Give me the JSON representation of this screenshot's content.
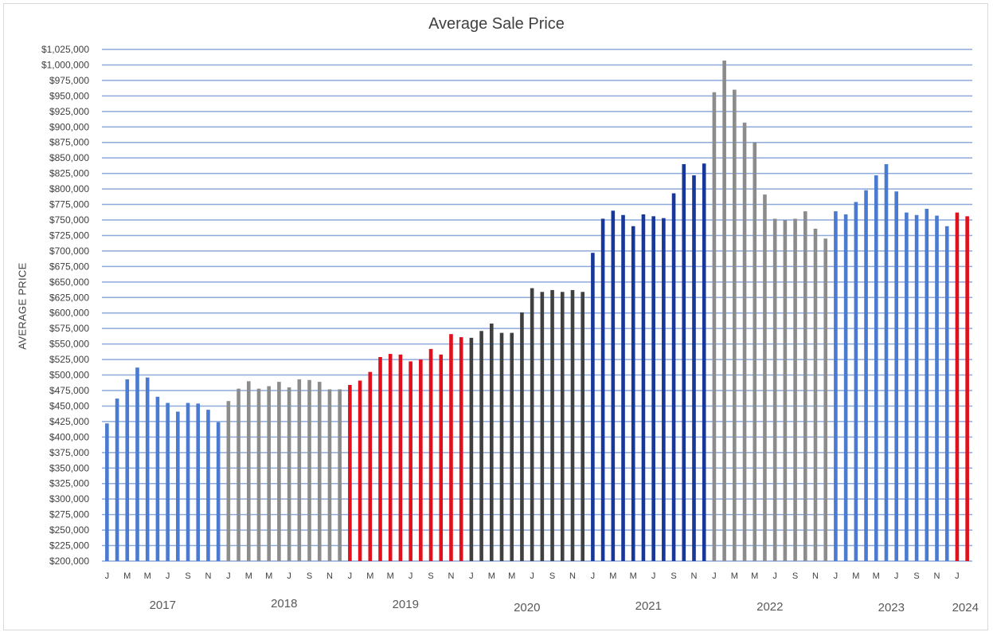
{
  "chart_data": {
    "type": "bar",
    "title": "Average Sale Price",
    "ylabel": "AVERAGE PRICE",
    "xlabel": "",
    "ylim": [
      200000,
      1025000
    ],
    "ytick_step": 25000,
    "grid": true,
    "legend": "none",
    "month_tick_labels": [
      "J",
      "M",
      "M",
      "J",
      "S",
      "N",
      "J",
      "M",
      "M",
      "J",
      "S",
      "N",
      "J",
      "M",
      "M",
      "J",
      "S",
      "N",
      "J",
      "M",
      "M",
      "J",
      "S",
      "N",
      "J",
      "M",
      "M",
      "J",
      "S",
      "N",
      "J",
      "M",
      "M",
      "J",
      "S",
      "N",
      "J",
      "M",
      "M",
      "J",
      "S",
      "N",
      "J"
    ],
    "years": [
      {
        "label": "2017",
        "color": "#4a7bd0",
        "values": [
          422000,
          462000,
          493000,
          512000,
          496000,
          465000,
          455000,
          441000,
          455000,
          454000,
          444000,
          424000
        ]
      },
      {
        "label": "2018",
        "color": "#8c8c8c",
        "values": [
          458000,
          478000,
          490000,
          478000,
          482000,
          489000,
          480000,
          493000,
          492000,
          489000,
          477000,
          477000
        ]
      },
      {
        "label": "2019",
        "color": "#e0101c",
        "values": [
          484000,
          491000,
          505000,
          529000,
          534000,
          533000,
          522000,
          525000,
          542000,
          533000,
          566000,
          561000
        ]
      },
      {
        "label": "2020",
        "color": "#404040",
        "values": [
          560000,
          571000,
          583000,
          568000,
          568000,
          601000,
          640000,
          634000,
          637000,
          634000,
          637000,
          634000
        ]
      },
      {
        "label": "2021",
        "color": "#17389a",
        "values": [
          697000,
          752000,
          765000,
          758000,
          740000,
          759000,
          756000,
          753000,
          793000,
          840000,
          822000,
          841000
        ]
      },
      {
        "label": "2022",
        "color": "#8c8c8c",
        "values": [
          956000,
          1007000,
          960000,
          907000,
          875000,
          791000,
          752000,
          750000,
          752000,
          764000,
          736000,
          720000
        ]
      },
      {
        "label": "2023",
        "color": "#4a7bd0",
        "values": [
          764000,
          759000,
          779000,
          798000,
          822000,
          840000,
          796000,
          762000,
          758000,
          768000,
          757000,
          740000
        ]
      },
      {
        "label": "2024",
        "color": "#e0101c",
        "values": [
          762000,
          756000
        ]
      }
    ]
  }
}
